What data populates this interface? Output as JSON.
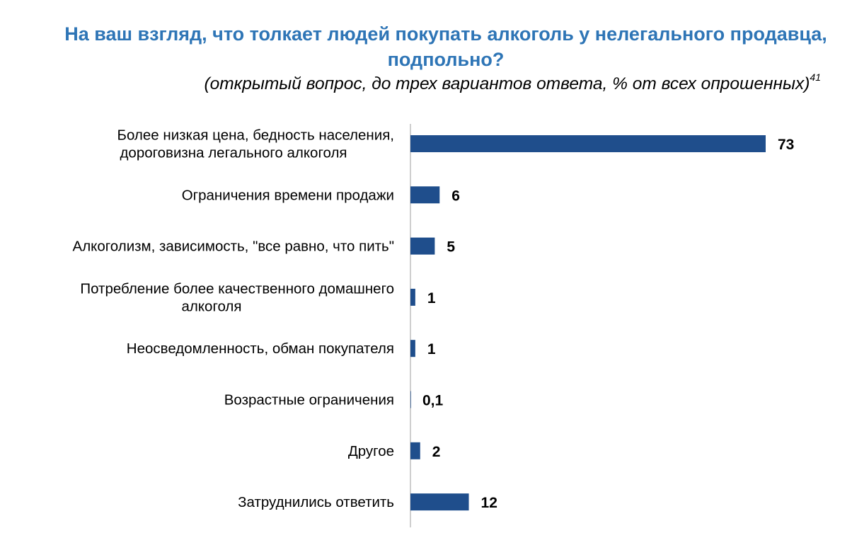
{
  "title": "На ваш взгляд, что толкает людей покупать алкоголь у нелегального продавца, подпольно?",
  "subtitle": "(открытый вопрос, до трех вариантов ответа, % от всех опрошенных)",
  "subtitle_footnote": "41",
  "colors": {
    "title": "#2E75B6",
    "bar": "#1F4E8C",
    "axis": "#BFBFBF"
  },
  "chart_data": {
    "type": "bar",
    "orientation": "horizontal",
    "categories": [
      [
        "Более низкая цена, бедность населения,",
        "дороговизна легального алкоголя"
      ],
      [
        "Ограничения времени продажи"
      ],
      [
        "Алкоголизм, зависимость, \"все равно, что пить\""
      ],
      [
        "Потребление более качественного домашнего",
        "алкоголя"
      ],
      [
        "Неосведомленность, обман покупателя"
      ],
      [
        "Возрастные ограничения"
      ],
      [
        "Другое"
      ],
      [
        "Затруднились ответить"
      ]
    ],
    "values": [
      73,
      6,
      5,
      1,
      1,
      0.1,
      2,
      12
    ],
    "value_labels": [
      "73",
      "6",
      "5",
      "1",
      "1",
      "0,1",
      "2",
      "12"
    ],
    "xlim": [
      0,
      73
    ],
    "grid": false,
    "legend": "none"
  }
}
